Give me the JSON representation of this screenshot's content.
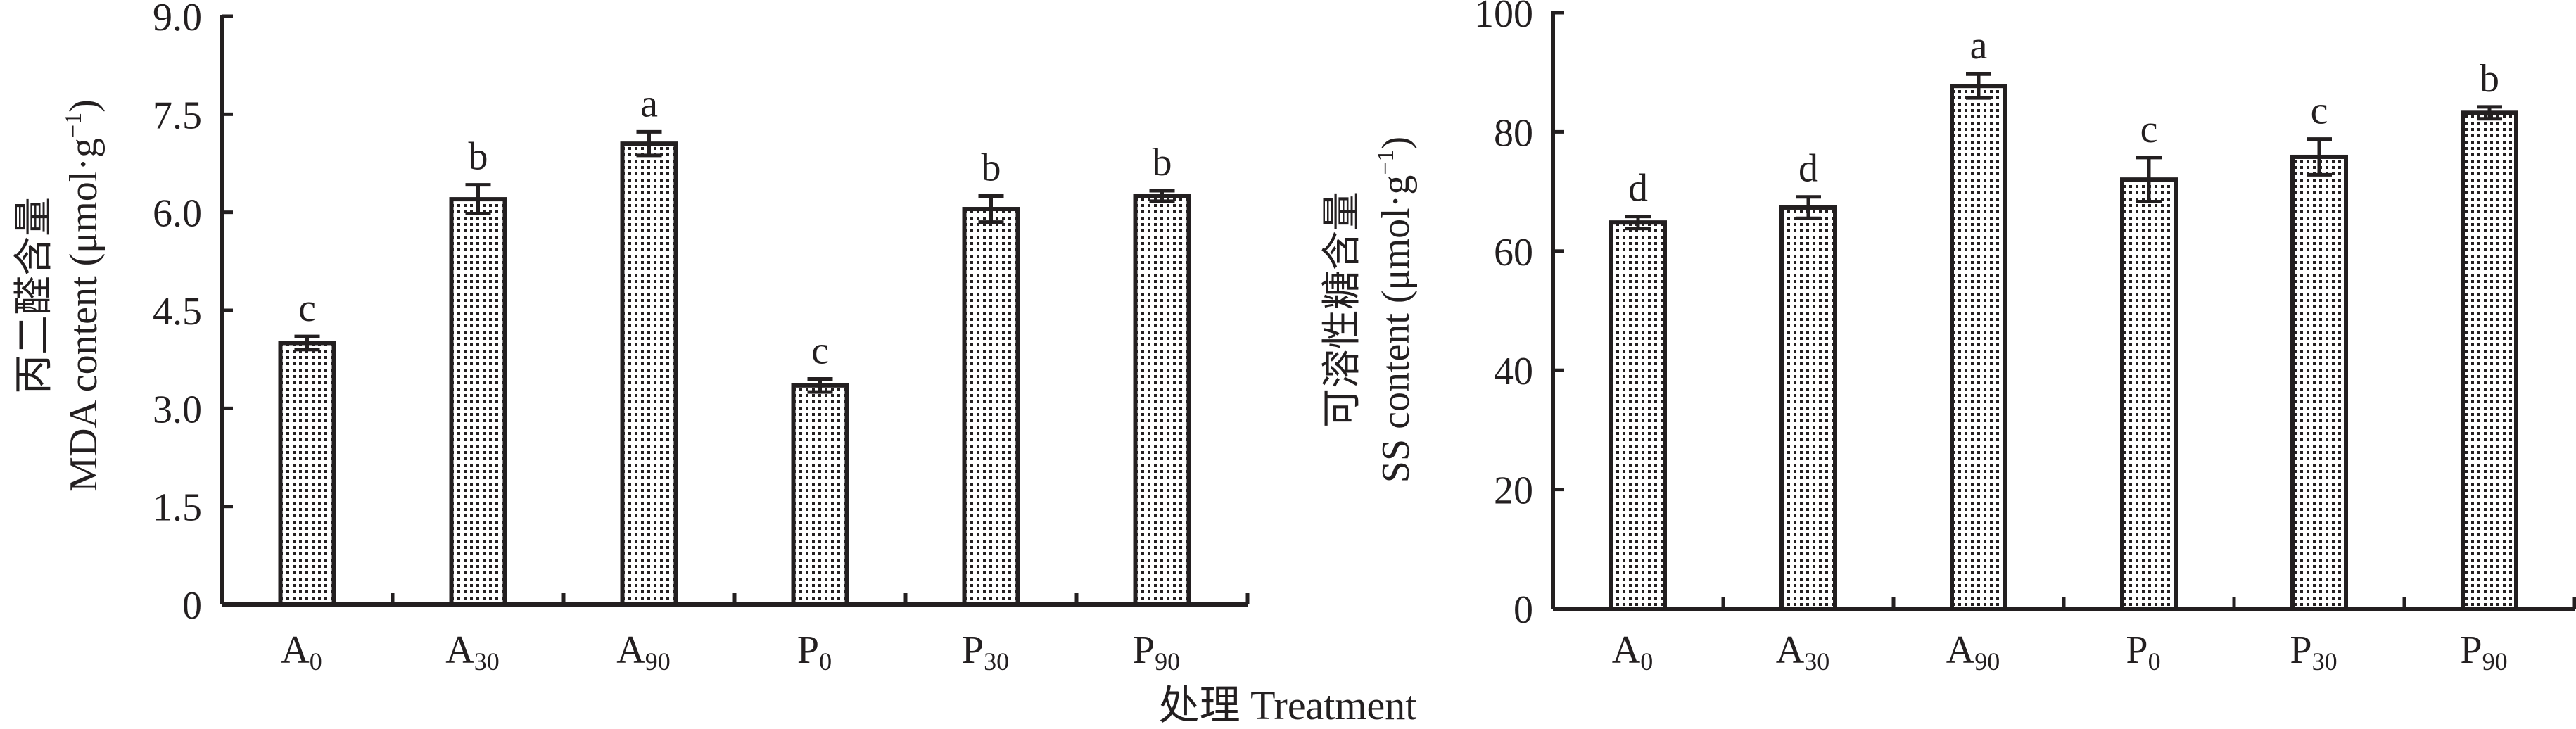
{
  "x_axis_title": "处理 Treatment",
  "colors": {
    "ink": "#231f20",
    "bar_fill": "#ffffff",
    "dot": "#231f20"
  },
  "chart_data": [
    {
      "type": "bar",
      "ylabel_cn": "丙二醛含量",
      "ylabel_en": "MDA content (μmol·g",
      "ylabel_sup": "−1",
      "ylabel_close": ")",
      "ylim": [
        0,
        9.0
      ],
      "yticks": [
        "0",
        "1.5",
        "3.0",
        "4.5",
        "6.0",
        "7.5",
        "9.0"
      ],
      "ytick_values": [
        0,
        1.5,
        3.0,
        4.5,
        6.0,
        7.5,
        9.0
      ],
      "categories": [
        {
          "main": "A",
          "sub": "0"
        },
        {
          "main": "A",
          "sub": "30"
        },
        {
          "main": "A",
          "sub": "90"
        },
        {
          "main": "P",
          "sub": "0"
        },
        {
          "main": "P",
          "sub": "30"
        },
        {
          "main": "P",
          "sub": "90"
        }
      ],
      "values": [
        4.0,
        6.2,
        7.05,
        3.35,
        6.05,
        6.25
      ],
      "errors": [
        0.1,
        0.22,
        0.18,
        0.1,
        0.2,
        0.08
      ],
      "letters": [
        "c",
        "b",
        "a",
        "c",
        "b",
        "b"
      ]
    },
    {
      "type": "bar",
      "ylabel_cn": "可溶性糖含量",
      "ylabel_en": "SS content (μmol·g",
      "ylabel_sup": "−1",
      "ylabel_close": ")",
      "ylim": [
        0,
        100
      ],
      "yticks": [
        "0",
        "20",
        "40",
        "60",
        "80",
        "100"
      ],
      "ytick_values": [
        0,
        20,
        40,
        60,
        80,
        100
      ],
      "categories": [
        {
          "main": "A",
          "sub": "0"
        },
        {
          "main": "A",
          "sub": "30"
        },
        {
          "main": "A",
          "sub": "90"
        },
        {
          "main": "P",
          "sub": "0"
        },
        {
          "main": "P",
          "sub": "30"
        },
        {
          "main": "P",
          "sub": "90"
        }
      ],
      "values": [
        64.8,
        67.3,
        87.7,
        72.0,
        75.8,
        83.2
      ],
      "errors": [
        1.0,
        1.8,
        2.0,
        3.7,
        3.0,
        1.0
      ],
      "letters": [
        "d",
        "d",
        "a",
        "c",
        "c",
        "b"
      ]
    }
  ]
}
